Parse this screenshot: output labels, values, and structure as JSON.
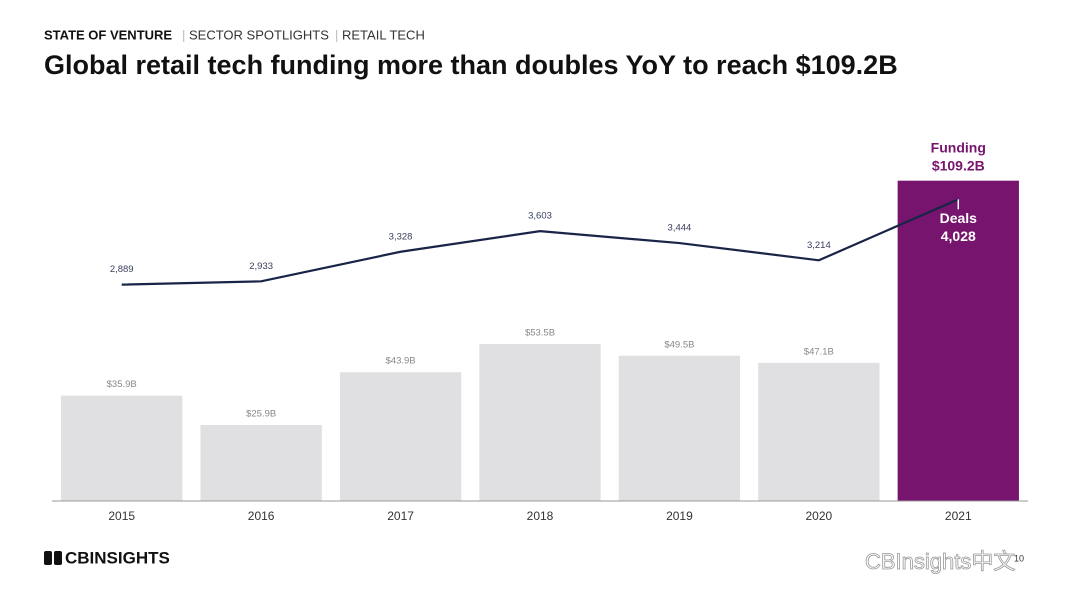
{
  "header": {
    "kicker": [
      "STATE OF VENTURE",
      "SECTOR SPOTLIGHTS",
      "RETAIL TECH"
    ],
    "title": "Global retail tech funding more than doubles YoY to reach $109.2B"
  },
  "chart_data": {
    "type": "bar",
    "categories": [
      "2015",
      "2016",
      "2017",
      "2018",
      "2019",
      "2020",
      "2021"
    ],
    "series": [
      {
        "name": "Funding",
        "type": "bar",
        "colors": [
          "#e0dfe1",
          "#e0dfe1",
          "#e0dfe1",
          "#e0dfe1",
          "#e0dfe1",
          "#e0dfe1",
          "#76146e"
        ],
        "values": [
          35.9,
          25.9,
          43.9,
          53.5,
          49.5,
          47.1,
          109.2
        ],
        "value_labels": [
          "$35.9B",
          "$25.9B",
          "$43.9B",
          "$53.5B",
          "$49.5B",
          "$47.1B",
          "$109.2B"
        ]
      },
      {
        "name": "Deals",
        "type": "line",
        "axis": "y2",
        "color": "#1a2447",
        "values": [
          2889,
          2933,
          3328,
          3603,
          3444,
          3214,
          4028
        ],
        "value_labels": [
          "2,889",
          "2,933",
          "3,328",
          "3,603",
          "3,444",
          "3,214",
          "4,028"
        ]
      }
    ],
    "ylim": [
      0,
      120
    ],
    "y2lim": [
      0,
      4700
    ]
  },
  "footer": {
    "logo": "CBINSIGHTS",
    "page": "10",
    "watermark": "CBInsights中文"
  }
}
